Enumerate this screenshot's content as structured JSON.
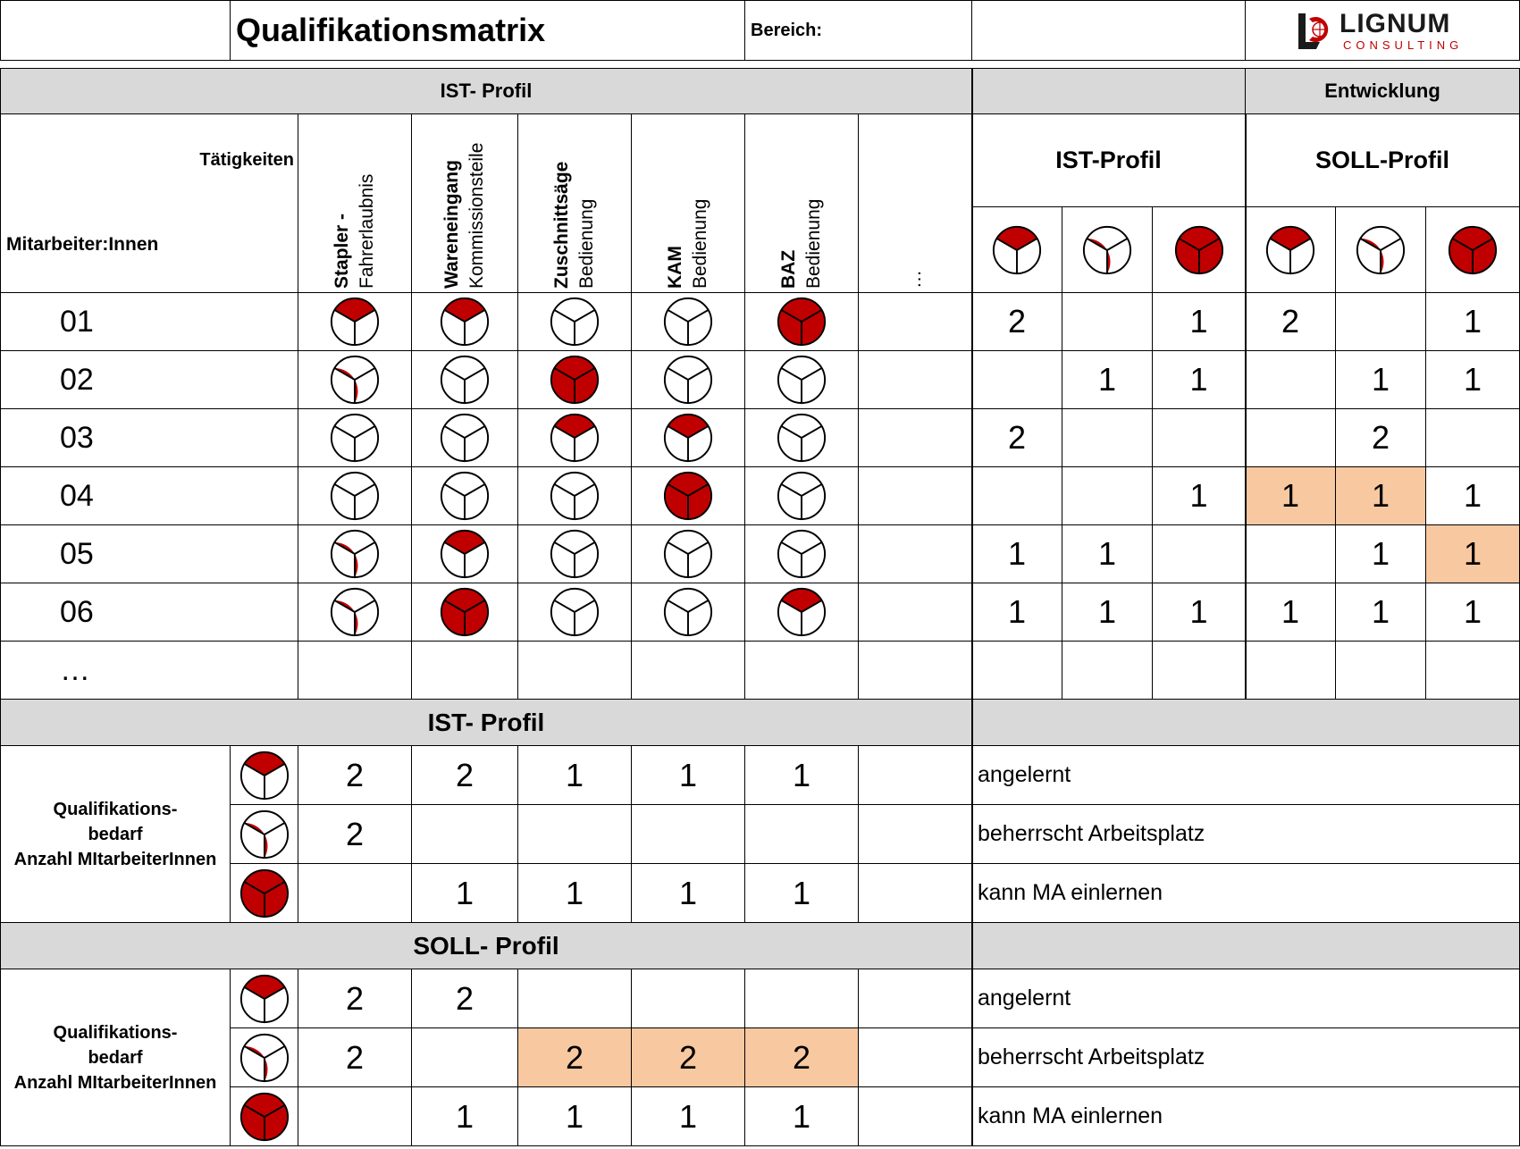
{
  "header": {
    "title": "Qualifikationsmatrix",
    "bereich_label": "Bereich:",
    "logo_name": "LIGNUM",
    "logo_sub": "CONSULTING"
  },
  "colors": {
    "accent": "#c00000",
    "header_band": "#d9d9d9",
    "highlight": "#f8c8a0"
  },
  "matrix": {
    "ist_profil_label": "IST- Profil",
    "entwicklung_label": "Entwicklung",
    "taetigkeiten_label": "Tätigkeiten",
    "mitarbeiter_label": "Mitarbeiter:Innen",
    "ist_profil_sub": "IST-Profil",
    "soll_profil_sub": "SOLL-Profil",
    "activities": [
      {
        "bold": "Stapler -",
        "normal": "Fahrerlaubnis"
      },
      {
        "bold": "Wareneingang",
        "normal": "Kommissionsteile"
      },
      {
        "bold": "Zuschnittsäge",
        "normal": "Bedienung"
      },
      {
        "bold": "KAM",
        "normal": "Bedienung"
      },
      {
        "bold": "BAZ",
        "normal": "Bedienung"
      },
      {
        "bold": "",
        "normal": "…"
      }
    ],
    "level_icons": [
      "angelernt-icon",
      "beherrscht-icon",
      "einlernen-icon"
    ],
    "rows": [
      {
        "id": "01",
        "levels": [
          1,
          1,
          0,
          0,
          3
        ],
        "ist": [
          "2",
          "",
          "1"
        ],
        "soll": [
          "2",
          "",
          "1"
        ],
        "soll_highlight": [
          false,
          false,
          false
        ]
      },
      {
        "id": "02",
        "levels": [
          2,
          0,
          3,
          0,
          0
        ],
        "ist": [
          "",
          "1",
          "1"
        ],
        "soll": [
          "",
          "1",
          "1"
        ],
        "soll_highlight": [
          false,
          false,
          false
        ]
      },
      {
        "id": "03",
        "levels": [
          0,
          0,
          1,
          1,
          0
        ],
        "ist": [
          "2",
          "",
          ""
        ],
        "soll": [
          "",
          "2",
          ""
        ],
        "soll_highlight": [
          false,
          false,
          false
        ]
      },
      {
        "id": "04",
        "levels": [
          0,
          0,
          0,
          3,
          0
        ],
        "ist": [
          "",
          "",
          "1"
        ],
        "soll": [
          "1",
          "1",
          "1"
        ],
        "soll_highlight": [
          true,
          true,
          false
        ]
      },
      {
        "id": "05",
        "levels": [
          2,
          1,
          0,
          0,
          0
        ],
        "ist": [
          "1",
          "1",
          ""
        ],
        "soll": [
          "",
          "1",
          "1"
        ],
        "soll_highlight": [
          false,
          false,
          true
        ]
      },
      {
        "id": "06",
        "levels": [
          2,
          3,
          0,
          0,
          1
        ],
        "ist": [
          "1",
          "1",
          "1"
        ],
        "soll": [
          "1",
          "1",
          "1"
        ],
        "soll_highlight": [
          false,
          false,
          false
        ]
      },
      {
        "id": "…",
        "levels": [
          -1,
          -1,
          -1,
          -1,
          -1
        ],
        "ist": [
          "",
          "",
          ""
        ],
        "soll": [
          "",
          "",
          ""
        ],
        "soll_highlight": [
          false,
          false,
          false
        ]
      }
    ]
  },
  "ist_section": {
    "title": "IST- Profil",
    "label_line1": "Qualifikations-",
    "label_line2": "bedarf",
    "label_line3": "Anzahl MItarbeiterInnen",
    "rows": [
      {
        "level": 1,
        "values": [
          "2",
          "2",
          "1",
          "1",
          "1",
          ""
        ],
        "highlight": [
          false,
          false,
          false,
          false,
          false,
          false
        ],
        "legend": "angelernt"
      },
      {
        "level": 2,
        "values": [
          "2",
          "",
          "",
          "",
          "",
          ""
        ],
        "highlight": [
          false,
          false,
          false,
          false,
          false,
          false
        ],
        "legend": "beherrscht Arbeitsplatz"
      },
      {
        "level": 3,
        "values": [
          "",
          "1",
          "1",
          "1",
          "1",
          ""
        ],
        "highlight": [
          false,
          false,
          false,
          false,
          false,
          false
        ],
        "legend": "kann MA einlernen"
      }
    ]
  },
  "soll_section": {
    "title": "SOLL- Profil",
    "label_line1": "Qualifikations-",
    "label_line2": "bedarf",
    "label_line3": "Anzahl MItarbeiterInnen",
    "rows": [
      {
        "level": 1,
        "values": [
          "2",
          "2",
          "",
          "",
          "",
          ""
        ],
        "highlight": [
          false,
          false,
          false,
          false,
          false,
          false
        ],
        "legend": "angelernt"
      },
      {
        "level": 2,
        "values": [
          "2",
          "",
          "2",
          "2",
          "2",
          ""
        ],
        "highlight": [
          false,
          false,
          true,
          true,
          true,
          false
        ],
        "legend": "beherrscht Arbeitsplatz"
      },
      {
        "level": 3,
        "values": [
          "",
          "1",
          "1",
          "1",
          "1",
          ""
        ],
        "highlight": [
          false,
          false,
          false,
          false,
          false,
          false
        ],
        "legend": "kann MA einlernen"
      }
    ]
  }
}
